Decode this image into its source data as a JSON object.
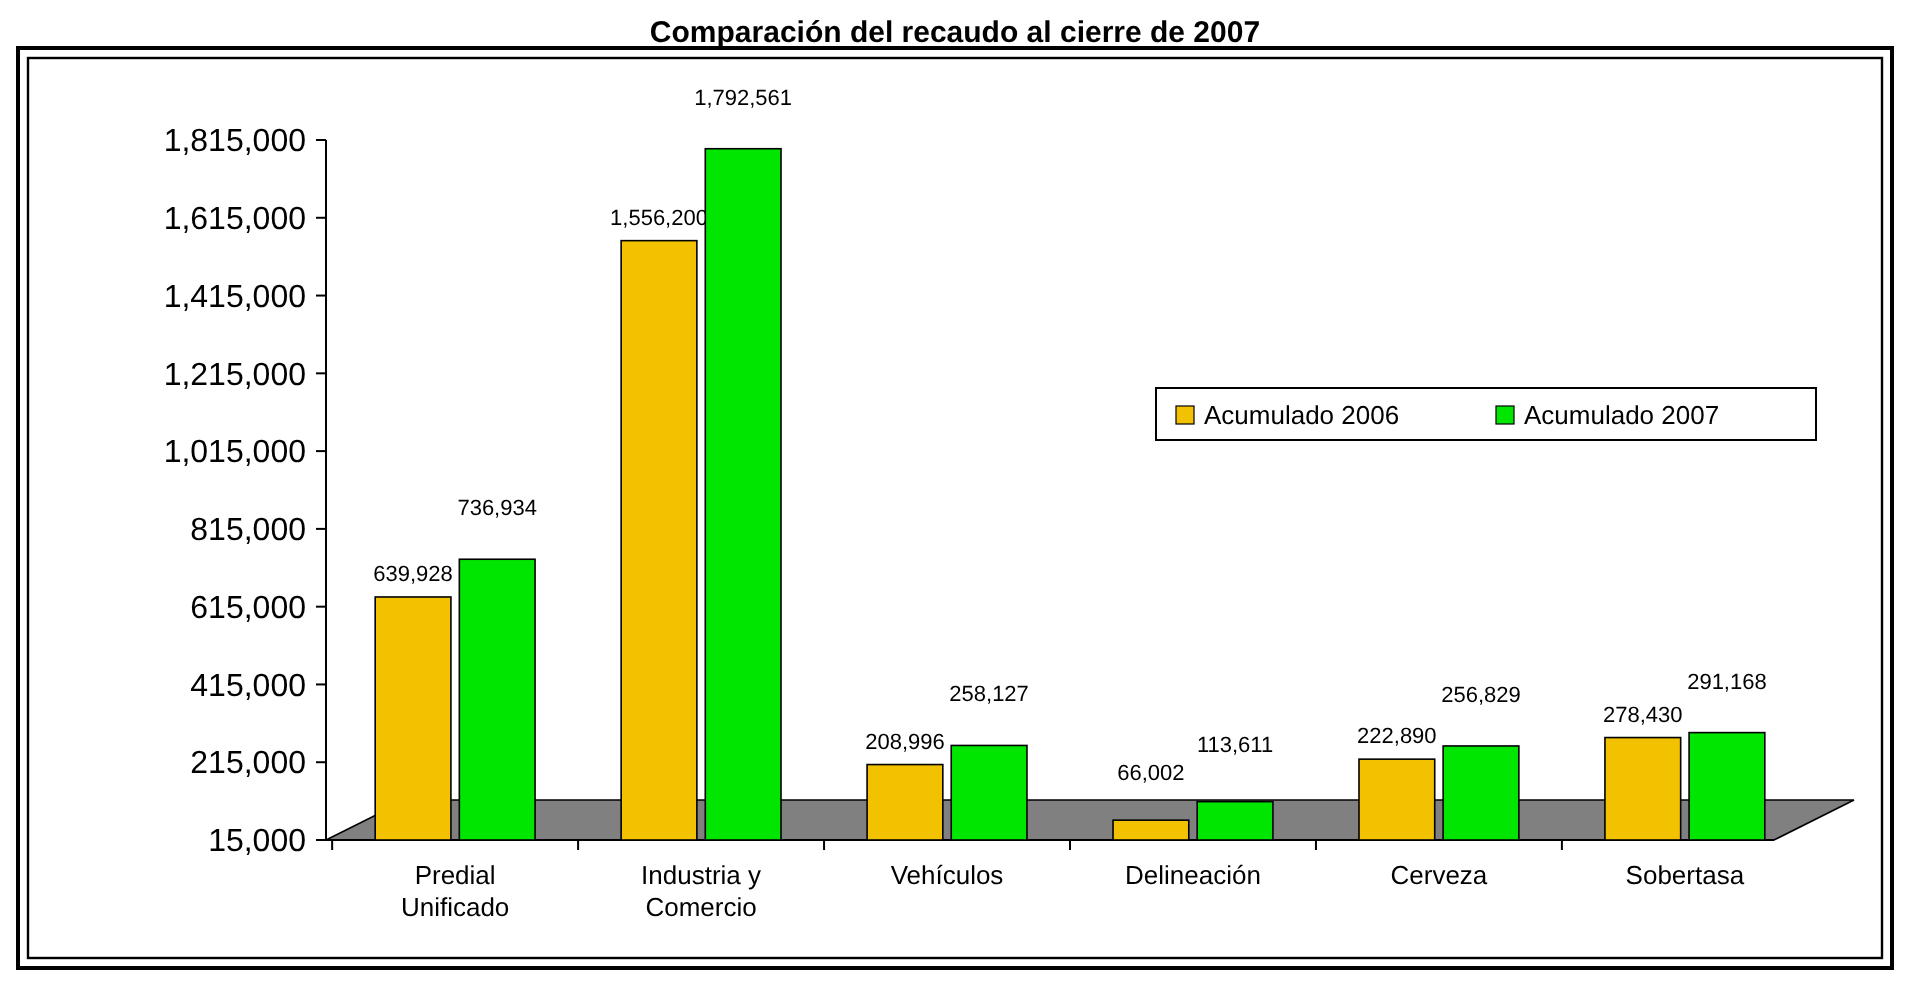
{
  "chart_data": {
    "type": "bar",
    "title": "Comparación del recaudo al cierre de 2007",
    "categories": [
      "Predial\nUnificado",
      "Industria y\nComercio",
      "Vehículos",
      "Delineación",
      "Cerveza",
      "Sobertasa"
    ],
    "series": [
      {
        "name": "Acumulado 2006",
        "color": "#f2c200",
        "values": [
          639928,
          1556200,
          208996,
          66002,
          222890,
          278430
        ],
        "value_labels": [
          "639,928",
          "1,556,200",
          "208,996",
          "66,002",
          "222,890",
          "278,430"
        ]
      },
      {
        "name": "Acumulado 2007",
        "color": "#00e600",
        "values": [
          736934,
          1792561,
          258127,
          113611,
          256829,
          291168
        ],
        "value_labels": [
          "736,934",
          "1,792,561",
          "258,127",
          "113,611",
          "256,829",
          "291,168"
        ]
      }
    ],
    "ylim": [
      15000,
      1815000
    ],
    "yticks": [
      {
        "value": 15000,
        "label": "15,000"
      },
      {
        "value": 215000,
        "label": "215,000"
      },
      {
        "value": 415000,
        "label": "415,000"
      },
      {
        "value": 615000,
        "label": "615,000"
      },
      {
        "value": 815000,
        "label": "815,000"
      },
      {
        "value": 1015000,
        "label": "1,015,000"
      },
      {
        "value": 1215000,
        "label": "1,215,000"
      },
      {
        "value": 1415000,
        "label": "1,415,000"
      },
      {
        "value": 1615000,
        "label": "1,615,000"
      },
      {
        "value": 1815000,
        "label": "1,815,000"
      }
    ],
    "legend": "right",
    "grid": false
  }
}
